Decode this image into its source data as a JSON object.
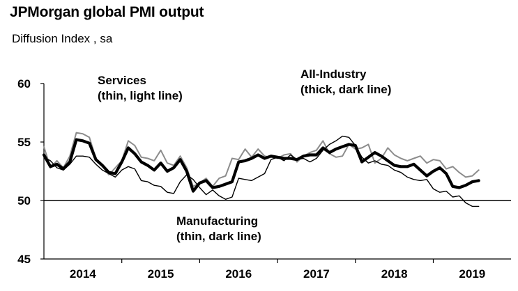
{
  "title": "JPMorgan global PMI output",
  "subtitle": "Diffusion Index , sa",
  "chart_data": {
    "type": "line",
    "title": "JPMorgan global PMI output",
    "ylabel": "Diffusion Index , sa",
    "ylim": [
      45,
      60
    ],
    "yticks": [
      "45",
      "50",
      "55",
      "60"
    ],
    "year_labels": [
      "2014",
      "2015",
      "2016",
      "2017",
      "2018",
      "2019"
    ],
    "x_start": "2014-01",
    "reference_line": 50,
    "annotations": [
      {
        "lines": [
          "Services",
          "(thin, light line)"
        ],
        "anchor": "services"
      },
      {
        "lines": [
          "All-Industry",
          "(thick, dark line)"
        ],
        "anchor": "allindustry"
      },
      {
        "lines": [
          "Manufacturing",
          "(thin, dark line)"
        ],
        "anchor": "manufacturing"
      }
    ],
    "series": [
      {
        "key": "services",
        "color": "#8c8c8c",
        "width": 2,
        "values": [
          54.6,
          52.8,
          53.4,
          52.8,
          53.8,
          55.8,
          55.7,
          55.4,
          53.6,
          53.0,
          52.2,
          52.8,
          53.4,
          55.1,
          54.7,
          53.7,
          53.6,
          53.4,
          54.3,
          53.2,
          53.0,
          53.8,
          52.8,
          51.2,
          51.5,
          51.9,
          51.2,
          51.9,
          52.1,
          53.6,
          53.5,
          54.4,
          53.7,
          54.4,
          53.8,
          53.7,
          53.6,
          53.9,
          54.0,
          53.3,
          53.8,
          54.1,
          54.3,
          55.1,
          54.0,
          53.7,
          53.8,
          54.8,
          54.4,
          54.5,
          54.8,
          53.2,
          53.6,
          54.5,
          53.9,
          53.6,
          53.4,
          53.6,
          53.8,
          53.2,
          53.5,
          53.4,
          52.7,
          52.9,
          52.4,
          52.0,
          52.1,
          52.6
        ]
      },
      {
        "key": "manufacturing",
        "color": "#000000",
        "width": 1.4,
        "values": [
          53.7,
          53.4,
          52.8,
          52.6,
          53.1,
          53.8,
          53.8,
          53.7,
          53.1,
          52.6,
          52.3,
          52.0,
          52.6,
          52.9,
          52.7,
          51.7,
          51.6,
          51.3,
          51.2,
          50.7,
          50.6,
          51.6,
          52.2,
          51.8,
          51.1,
          50.5,
          50.9,
          50.4,
          50.1,
          50.3,
          51.9,
          51.8,
          51.7,
          52.0,
          52.3,
          53.5,
          53.7,
          53.4,
          53.9,
          53.5,
          53.6,
          53.3,
          53.6,
          54.3,
          54.8,
          55.1,
          55.5,
          55.4,
          54.7,
          53.7,
          53.2,
          53.4,
          53.1,
          53.0,
          52.6,
          52.4,
          52.0,
          51.8,
          51.7,
          51.8,
          51.0,
          50.7,
          50.8,
          50.3,
          50.4,
          49.8,
          49.5,
          49.5
        ]
      },
      {
        "key": "allindustry",
        "color": "#000000",
        "width": 4.2,
        "values": [
          53.9,
          52.9,
          53.1,
          52.7,
          53.3,
          55.2,
          55.1,
          54.9,
          53.5,
          53.0,
          52.4,
          52.3,
          53.3,
          54.5,
          54.0,
          53.3,
          53.0,
          52.6,
          53.2,
          52.5,
          52.8,
          53.5,
          52.5,
          50.8,
          51.5,
          51.7,
          51.1,
          51.2,
          51.4,
          51.6,
          53.3,
          53.4,
          53.6,
          53.9,
          53.6,
          53.8,
          53.7,
          53.6,
          53.6,
          53.5,
          53.8,
          53.9,
          53.9,
          54.5,
          54.1,
          54.4,
          54.6,
          54.8,
          54.7,
          53.3,
          53.7,
          54.1,
          53.8,
          53.4,
          53.0,
          52.9,
          52.9,
          53.1,
          52.6,
          52.1,
          52.5,
          52.8,
          52.3,
          51.2,
          51.1,
          51.3,
          51.6,
          51.7
        ]
      }
    ]
  }
}
